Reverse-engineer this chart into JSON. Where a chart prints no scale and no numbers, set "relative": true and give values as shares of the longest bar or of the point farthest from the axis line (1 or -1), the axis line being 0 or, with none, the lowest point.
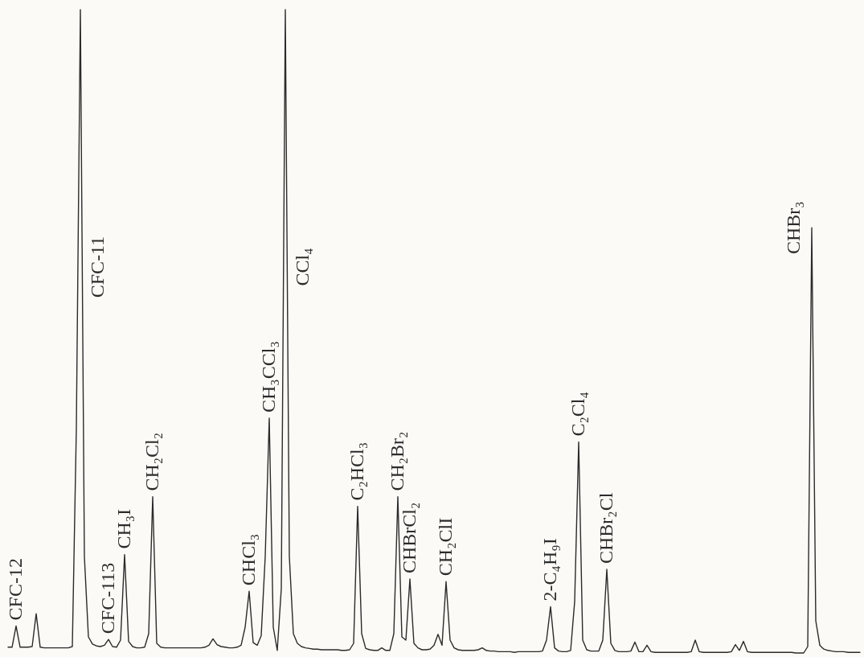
{
  "chart_data": {
    "type": "line",
    "relative": true,
    "categories": [
      null,
      null,
      null,
      null,
      null,
      null,
      null,
      null,
      null,
      null,
      null,
      null,
      null,
      null,
      null,
      null,
      null,
      null,
      null,
      null,
      null,
      null,
      null,
      null,
      null,
      null,
      null,
      null,
      null,
      null,
      null,
      null,
      null,
      null,
      null,
      null,
      null,
      null,
      null,
      null,
      null,
      null,
      null,
      null,
      null,
      null,
      null,
      null,
      null,
      null,
      null,
      null,
      null,
      null,
      null,
      null,
      null,
      null,
      null,
      null,
      null,
      null,
      null,
      null,
      null,
      null,
      null,
      null,
      null,
      null,
      null,
      null,
      null,
      null,
      null,
      null,
      null,
      null,
      null,
      null,
      null,
      null,
      null,
      null,
      null,
      null,
      null,
      null,
      null,
      null,
      null,
      null,
      null,
      null,
      null,
      null,
      null,
      null,
      null,
      null,
      null,
      null,
      null,
      null,
      null,
      null,
      null,
      null,
      null,
      null,
      null,
      null,
      null,
      null,
      null,
      null,
      null,
      null,
      null,
      null,
      null,
      null,
      null,
      null,
      null,
      null,
      null,
      null,
      null,
      null,
      null,
      null,
      null,
      null,
      null,
      null,
      null,
      null,
      null,
      null,
      null,
      null,
      null,
      null,
      null,
      null,
      null,
      null,
      null,
      null,
      null,
      null,
      null,
      null,
      null,
      null,
      null,
      null,
      null,
      null,
      null,
      null,
      null,
      null,
      null,
      null,
      null,
      null,
      null,
      null,
      null,
      null,
      null,
      null,
      null,
      null,
      null,
      null,
      null,
      null,
      null,
      null,
      null,
      null,
      null,
      null,
      null,
      null,
      null,
      null,
      null,
      null,
      null,
      null,
      null,
      null,
      null,
      null,
      null,
      null,
      null,
      null,
      null,
      null,
      null,
      null,
      null,
      null,
      null,
      null,
      null,
      null,
      null
    ],
    "series": [
      {
        "color": "#2b2b2b",
        "values": [
          0.009,
          0.009,
          0.042,
          0.009,
          0.009,
          0.009,
          0.01,
          0.061,
          0.009,
          0.008,
          0.008,
          0.008,
          0.008,
          0.008,
          0.008,
          0.008,
          0.01,
          0.35,
          1,
          0.15,
          0.025,
          0.014,
          0.011,
          0.01,
          0.012,
          0.021,
          0.01,
          0.009,
          0.02,
          0.153,
          0.018,
          0.01,
          0.008,
          0.008,
          0.009,
          0.03,
          0.243,
          0.015,
          0.009,
          0.008,
          0.008,
          0.008,
          0.008,
          0.008,
          0.008,
          0.008,
          0.008,
          0.008,
          0.008,
          0.009,
          0.012,
          0.022,
          0.013,
          0.01,
          0.009,
          0.008,
          0.008,
          0.009,
          0.012,
          0.04,
          0.096,
          0.016,
          0.012,
          0.027,
          0.15,
          0.365,
          0.04,
          0.004,
          0.1,
          1,
          0.15,
          0.03,
          0.015,
          0.01,
          0.008,
          0.007,
          0.006,
          0.006,
          0.005,
          0.005,
          0.005,
          0.005,
          0.005,
          0.004,
          0.004,
          0.005,
          0.015,
          0.228,
          0.03,
          0.007,
          0.005,
          0.004,
          0.004,
          0.008,
          0.004,
          0.004,
          0.03,
          0.243,
          0.025,
          0.02,
          0.115,
          0.015,
          0.008,
          0.005,
          0.005,
          0.006,
          0.012,
          0.029,
          0.012,
          0.111,
          0.02,
          0.008,
          0.005,
          0.004,
          0.004,
          0.004,
          0.004,
          0.005,
          0.008,
          0.004,
          0.003,
          0.003,
          0.002,
          0.002,
          0.002,
          0.002,
          0.001,
          0.002,
          0.002,
          0.002,
          0.002,
          0.002,
          0.002,
          0.003,
          0.02,
          0.072,
          0.008,
          0.003,
          0.002,
          0.002,
          0.004,
          0.08,
          0.328,
          0.02,
          0.005,
          0.003,
          0.003,
          0.003,
          0.02,
          0.13,
          0.015,
          0.004,
          0.002,
          0.002,
          0.002,
          0.003,
          0.017,
          0.002,
          0.002,
          0.012,
          0.002,
          0.001,
          0.001,
          0.001,
          0.001,
          0.001,
          0.001,
          0.001,
          0.001,
          0.001,
          0.002,
          0.02,
          0.002,
          0.001,
          0.001,
          0.001,
          0.001,
          0.001,
          0.001,
          0.001,
          0.002,
          0.013,
          0.004,
          0.018,
          0.002,
          0.001,
          0.001,
          0.001,
          0.001,
          0.001,
          0.001,
          0.001,
          0.001,
          0.001,
          0.001,
          0.001,
          0,
          0,
          0,
          0.01,
          0.661,
          0.05,
          0.012,
          0.006,
          0.004,
          0.003,
          0.002,
          0.002,
          0.002,
          0.001,
          0.001,
          0.001,
          0.001
        ]
      }
    ],
    "annotations": [
      {
        "text": "CFC-12",
        "y": 0.042
      },
      "CFC-11",
      {
        "text": "CFC-113",
        "y": 0.021
      },
      {
        "text": "CH₃I",
        "y": 0.153
      },
      {
        "text": "CH₂Cl₂",
        "y": 0.243
      },
      {
        "text": "CHCl₃",
        "y": 0.096
      },
      {
        "text": "CH₃CCl₃",
        "y": 0.365
      },
      "CCl₄",
      {
        "text": "C₂HCl₃",
        "y": 0.228
      },
      {
        "text": "CH₂Br₂",
        "y": 0.243
      },
      {
        "text": "CHBrCl₂",
        "y": 0.115
      },
      {
        "text": "CH₂ClI",
        "y": 0.111
      },
      {
        "text": "2-C₄H₉I",
        "y": 0.072
      },
      {
        "text": "C₂Cl₄",
        "y": 0.328
      },
      {
        "text": "CHBr₂Cl",
        "y": 0.13
      },
      "CHBr₃"
    ]
  }
}
